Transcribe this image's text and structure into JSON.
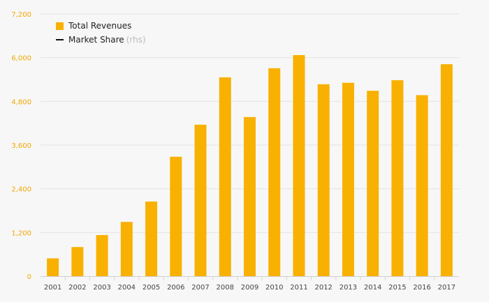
{
  "chart_data": {
    "type": "bar",
    "title": "",
    "xlabel": "",
    "ylabel": "",
    "ylim": [
      0,
      7200
    ],
    "yticks": [
      0,
      1200,
      2400,
      3600,
      4800,
      6000,
      7200
    ],
    "ytick_labels": [
      "0",
      "1,200",
      "2,400",
      "3,600",
      "4,800",
      "6,000",
      "7,200"
    ],
    "categories": [
      "2001",
      "2002",
      "2003",
      "2004",
      "2005",
      "2006",
      "2007",
      "2008",
      "2009",
      "2010",
      "2011",
      "2012",
      "2013",
      "2014",
      "2015",
      "2016",
      "2017"
    ],
    "series": [
      {
        "name": "Total Revenues",
        "color": "#f8b100",
        "values": [
          490,
          800,
          1130,
          1490,
          2050,
          3280,
          4160,
          5460,
          4370,
          5710,
          6070,
          5270,
          5310,
          5090,
          5380,
          4970,
          5820
        ]
      }
    ],
    "legend": {
      "bar_label": "Total Revenues",
      "line_label": "Market Share",
      "line_suffix": "(rhs)"
    },
    "grid": true
  }
}
